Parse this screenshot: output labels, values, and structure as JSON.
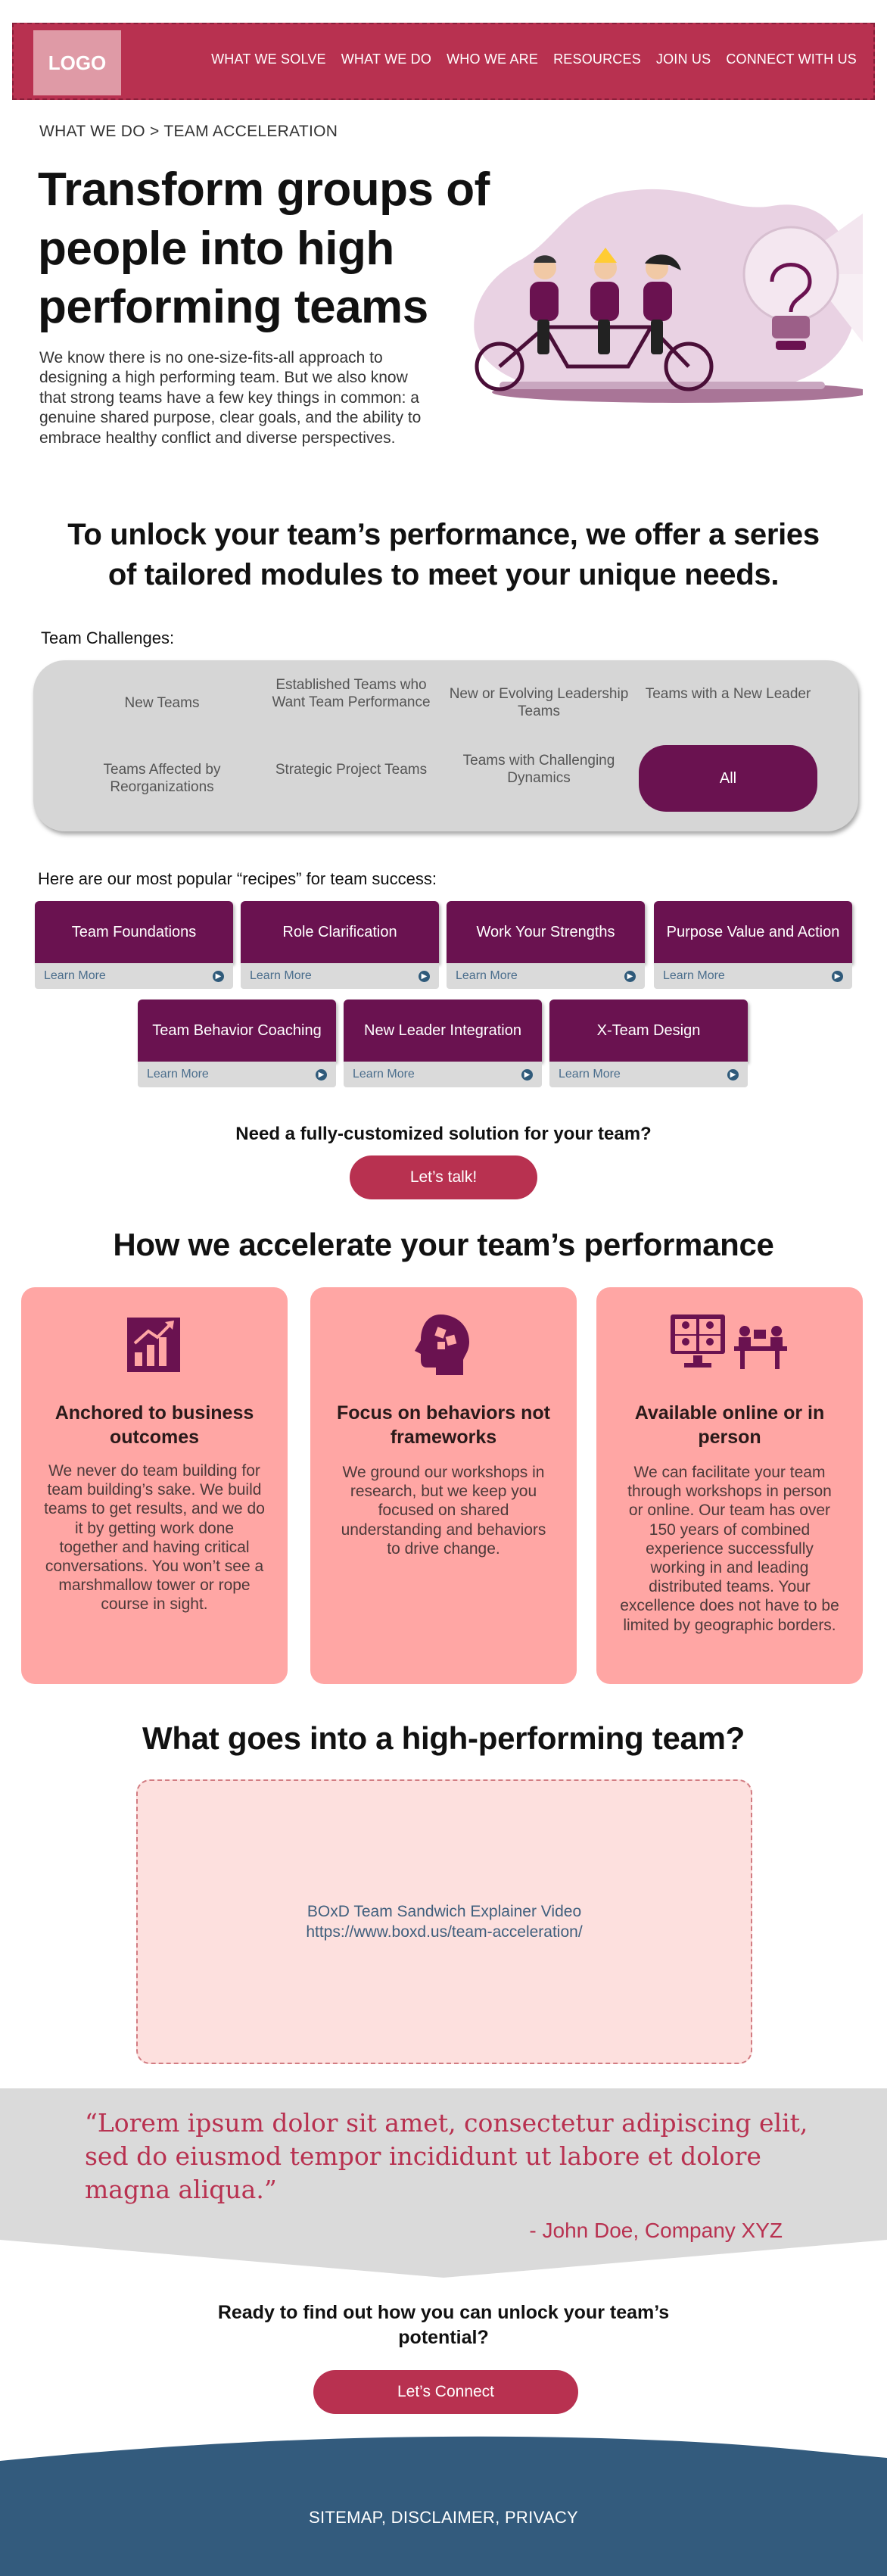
{
  "nav": {
    "logo": "LOGO",
    "items": [
      "WHAT WE SOLVE",
      "WHAT WE DO",
      "WHO WE ARE",
      "RESOURCES",
      "JOIN US",
      "CONNECT WITH US"
    ]
  },
  "breadcrumb": "WHAT WE DO > TEAM ACCELERATION",
  "hero": {
    "title": "Transform groups of people into high performing teams",
    "text": "We know there is no one-size-fits-all approach to designing a high performing team. But we also know that strong teams have a few key things in common: a genuine shared purpose, clear goals, and the ability to embrace healthy conflict and diverse perspectives."
  },
  "unlock_title": "To unlock your team’s performance, we offer a series of tailored modules to meet your unique needs.",
  "challenges": {
    "label": "Team Challenges:",
    "items": [
      "New Teams",
      "Established Teams who Want Team Performance",
      "New or Evolving Leadership Teams",
      "Teams with a New Leader",
      "Teams Affected by Reorganizations",
      "Strategic Project Teams",
      "Teams with Challenging Dynamics"
    ],
    "all_label": "All"
  },
  "recipes": {
    "label": "Here are our most popular “recipes” for team success:",
    "learn_more": "Learn More",
    "items": [
      "Team Foundations",
      "Role Clarification",
      "Work Your Strengths",
      "Purpose Value and Action",
      "Team Behavior Coaching",
      "New Leader Integration",
      "X-Team Design"
    ]
  },
  "custom": {
    "title": "Need a fully-customized solution for your team?",
    "button": "Let’s talk!"
  },
  "how": {
    "title": "How we accelerate your team’s performance",
    "cards": [
      {
        "icon": "chart-growth-icon",
        "title": "Anchored to business outcomes",
        "text": "We never do team building for team building’s sake. We build teams to get results, and we do it by getting work done together and having critical conversations. You won’t see a marshmallow tower or rope course in sight."
      },
      {
        "icon": "head-puzzle-icon",
        "title": "Focus on behaviors not frameworks",
        "text": "We ground our workshops in research, but we keep you focused on shared understanding and behaviors to drive change."
      },
      {
        "icon": "online-meeting-icon",
        "title": "Available online or in person",
        "text": "We can facilitate your team through workshops in person or online. Our team has over 150 years of combined experience successfully working in and leading distributed teams. Your excellence does not have to be limited by geographic borders."
      }
    ]
  },
  "video": {
    "title": "What goes into a high-performing team?",
    "caption": "BOxD Team Sandwich Explainer Video",
    "url": "https://www.boxd.us/team-acceleration/"
  },
  "testimonial": {
    "quote": "“Lorem ipsum dolor sit amet, consectetur adipiscing elit, sed do eiusmod tempor incididunt ut labore et dolore magna aliqua.”",
    "author": "- John Doe, Company XYZ"
  },
  "cta": {
    "title": "Ready to find out how you can unlock your team’s potential?",
    "button": "Let’s Connect"
  },
  "footer": {
    "links": "SITEMAP, DISCLAIMER, PRIVACY"
  },
  "colors": {
    "brand": "#b83150",
    "plum": "#6a1250",
    "card": "#ffa6a4",
    "footer": "#335b7d"
  }
}
